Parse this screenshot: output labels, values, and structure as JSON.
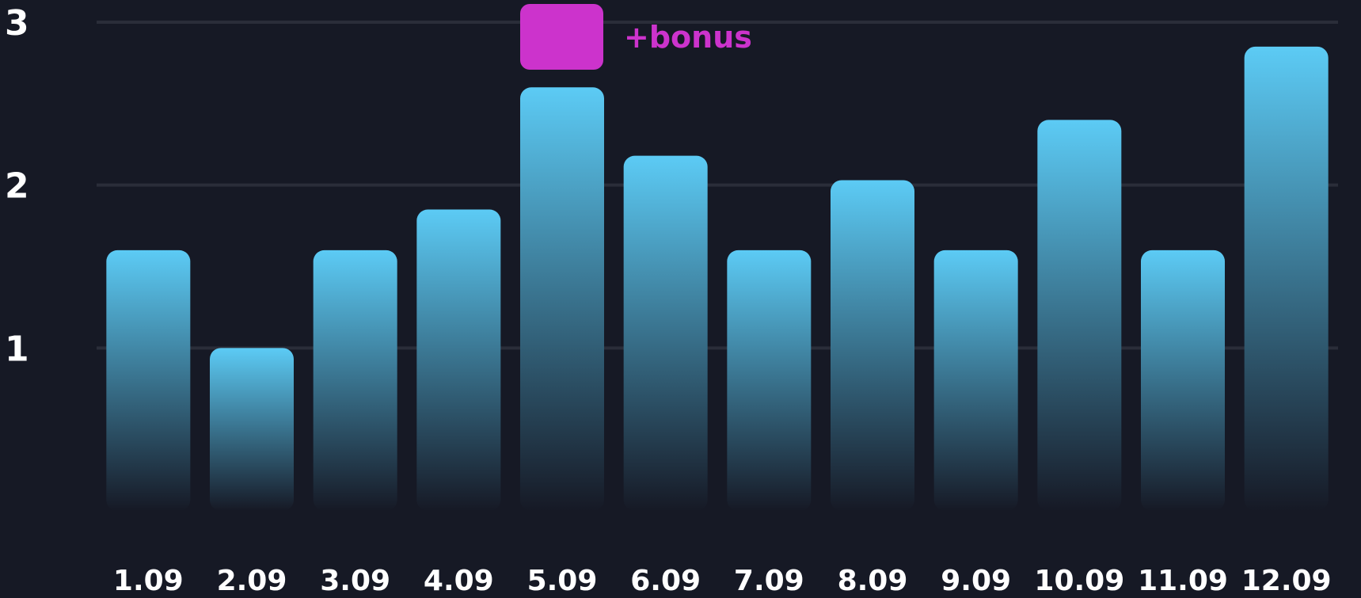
{
  "chart_data": {
    "type": "bar",
    "categories": [
      "1.09",
      "2.09",
      "3.09",
      "4.09",
      "5.09",
      "6.09",
      "7.09",
      "8.09",
      "9.09",
      "10.09",
      "11.09",
      "12.09"
    ],
    "series": [
      {
        "values": [
          1.6,
          1.0,
          1.6,
          1.85,
          2.6,
          2.18,
          1.6,
          2.03,
          1.6,
          2.4,
          1.6,
          2.85
        ]
      }
    ],
    "y_ticks": [
      "1",
      "2",
      "3"
    ],
    "ylim": [
      0,
      3
    ],
    "grid": true,
    "legend": {
      "label": "+bonus",
      "placement": "top-center",
      "color": "#cc33cc"
    },
    "colors": {
      "bar_top": "#5ccbf5",
      "bar_bottom": "#161925",
      "background": "#161925",
      "grid": "#2a2d39",
      "text": "#ffffff"
    }
  }
}
